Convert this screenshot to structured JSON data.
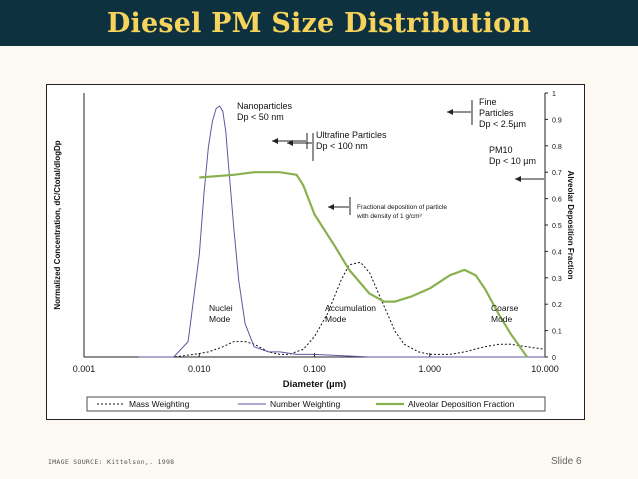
{
  "slide": {
    "title": "Diesel PM Size Distribution",
    "source": "IMAGE SOURCE: Kittelson,. 1998",
    "slide_label": "Slide",
    "slide_number": "6"
  },
  "colors": {
    "title_bar": "#0e3140",
    "title_text": "#f5d35c",
    "mass": "#111111",
    "number": "#5a5aa0",
    "alveolar": "#8ab04f"
  },
  "chart_data": {
    "type": "line",
    "x_scale": "log",
    "xlabel": "Diameter (µm)",
    "ylabel_left": "Normalized Concentration, dC/Ctotal/dlogDp",
    "ylabel_right": "Alveolar Deposition Fraction",
    "xlim": [
      0.001,
      10
    ],
    "y2lim": [
      0,
      1
    ],
    "x_ticks": [
      "0.001",
      "0.010",
      "0.100",
      "1.000",
      "10.000"
    ],
    "y2_ticks": [
      "0",
      "0.1",
      "0.2",
      "0.3",
      "0.4",
      "0.5",
      "0.6",
      "0.7",
      "0.8",
      "0.9",
      "1"
    ],
    "series": [
      {
        "name": "Mass Weighting",
        "axis": "left",
        "style": "dotted",
        "x": [
          0.003,
          0.006,
          0.009,
          0.012,
          0.016,
          0.02,
          0.025,
          0.03,
          0.04,
          0.05,
          0.06,
          0.08,
          0.1,
          0.13,
          0.17,
          0.2,
          0.25,
          0.3,
          0.4,
          0.5,
          0.6,
          0.8,
          1.0,
          1.5,
          2.0,
          3.0,
          4.0,
          5.0,
          7.0,
          10.0
        ],
        "y": [
          0.0,
          0.0,
          0.01,
          0.02,
          0.04,
          0.06,
          0.06,
          0.05,
          0.02,
          0.01,
          0.01,
          0.03,
          0.08,
          0.17,
          0.3,
          0.36,
          0.37,
          0.33,
          0.2,
          0.1,
          0.05,
          0.02,
          0.01,
          0.01,
          0.02,
          0.04,
          0.05,
          0.05,
          0.04,
          0.03
        ]
      },
      {
        "name": "Number Weighting",
        "axis": "left",
        "style": "solid",
        "x": [
          0.003,
          0.006,
          0.008,
          0.01,
          0.011,
          0.012,
          0.013,
          0.014,
          0.015,
          0.016,
          0.017,
          0.018,
          0.02,
          0.022,
          0.025,
          0.03,
          0.04,
          0.05,
          0.07,
          0.1,
          0.3,
          1.0,
          10.0
        ],
        "y": [
          0.0,
          0.0,
          0.06,
          0.4,
          0.64,
          0.82,
          0.92,
          0.97,
          0.98,
          0.96,
          0.88,
          0.74,
          0.5,
          0.3,
          0.13,
          0.04,
          0.02,
          0.02,
          0.01,
          0.01,
          0.0,
          0.0,
          0.0
        ]
      },
      {
        "name": "Alveolar Deposition Fraction",
        "axis": "right",
        "style": "solid",
        "x": [
          0.01,
          0.02,
          0.03,
          0.05,
          0.07,
          0.08,
          0.1,
          0.15,
          0.2,
          0.3,
          0.4,
          0.5,
          0.7,
          1.0,
          1.5,
          2.0,
          2.5,
          3.0,
          4.0,
          5.0,
          7.0
        ],
        "y": [
          0.68,
          0.69,
          0.7,
          0.7,
          0.69,
          0.65,
          0.54,
          0.42,
          0.33,
          0.24,
          0.21,
          0.21,
          0.23,
          0.26,
          0.31,
          0.33,
          0.31,
          0.26,
          0.16,
          0.09,
          0.0
        ]
      }
    ],
    "annotations": [
      {
        "id": "nanoparticles",
        "lines": [
          "Nanoparticles",
          "Dp < 50 nm"
        ]
      },
      {
        "id": "ultrafine",
        "lines": [
          "Ultrafine Particles",
          "Dp < 100 nm"
        ]
      },
      {
        "id": "fine",
        "lines": [
          "Fine",
          "Particles",
          "Dp < 2.5µm"
        ]
      },
      {
        "id": "pm10",
        "lines": [
          "PM10",
          "Dp < 10 µm"
        ]
      },
      {
        "id": "fractional",
        "lines": [
          "Fractional deposition of particle",
          "with density of 1 g/cm³"
        ]
      },
      {
        "id": "nuclei",
        "lines": [
          "Nuclei",
          "Mode"
        ]
      },
      {
        "id": "accumulation",
        "lines": [
          "Accumulation",
          "Mode"
        ]
      },
      {
        "id": "coarse",
        "lines": [
          "Coarse",
          "Mode"
        ]
      }
    ]
  }
}
